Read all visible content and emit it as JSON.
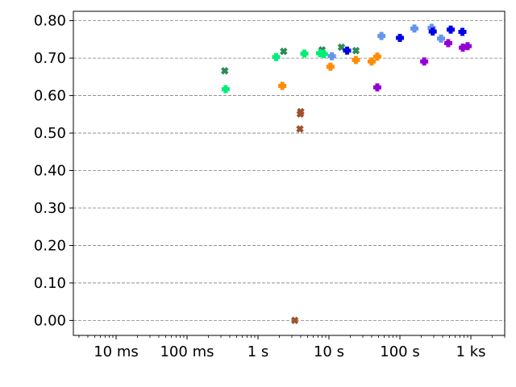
{
  "chart_data": {
    "type": "scatter",
    "title": "",
    "xlabel": "",
    "ylabel": "",
    "xscale": "log",
    "xlim_seconds": [
      0.0025,
      3000
    ],
    "ylim": [
      -0.04,
      0.825
    ],
    "grid": "horizontal dashed",
    "legend": "none",
    "x_ticks": [
      {
        "value": 0.01,
        "label": "10 ms"
      },
      {
        "value": 0.1,
        "label": "100 ms"
      },
      {
        "value": 1,
        "label": "1 s"
      },
      {
        "value": 10,
        "label": "10 s"
      },
      {
        "value": 100,
        "label": "100 s"
      },
      {
        "value": 1000,
        "label": "1 ks"
      }
    ],
    "y_ticks": [
      {
        "value": 0.0,
        "label": "0.00"
      },
      {
        "value": 0.1,
        "label": "0.10"
      },
      {
        "value": 0.2,
        "label": "0.20"
      },
      {
        "value": 0.3,
        "label": "0.30"
      },
      {
        "value": 0.4,
        "label": "0.40"
      },
      {
        "value": 0.5,
        "label": "0.50"
      },
      {
        "value": 0.6,
        "label": "0.60"
      },
      {
        "value": 0.7,
        "label": "0.70"
      },
      {
        "value": 0.8,
        "label": "0.80"
      }
    ],
    "series": [
      {
        "color": "#2e8b57",
        "marker": "x",
        "points": [
          [
            0.34,
            0.666
          ],
          [
            2.3,
            0.718
          ],
          [
            8.0,
            0.722
          ],
          [
            15.0,
            0.729
          ],
          [
            24.0,
            0.72
          ]
        ]
      },
      {
        "color": "#a0522d",
        "marker": "x",
        "points": [
          [
            3.3,
            0.0
          ],
          [
            3.9,
            0.511
          ],
          [
            3.95,
            0.551
          ],
          [
            4.0,
            0.557
          ]
        ]
      },
      {
        "color": "#00ee76",
        "marker": "p",
        "points": [
          [
            0.35,
            0.617
          ],
          [
            1.8,
            0.703
          ],
          [
            4.5,
            0.712
          ],
          [
            7.5,
            0.713
          ],
          [
            8.5,
            0.711
          ]
        ]
      },
      {
        "color": "#ff8c00",
        "marker": "p",
        "points": [
          [
            2.2,
            0.626
          ],
          [
            10.5,
            0.677
          ],
          [
            24.0,
            0.695
          ],
          [
            40.0,
            0.691
          ],
          [
            48.0,
            0.704
          ]
        ]
      },
      {
        "color": "#6495ed",
        "marker": "p",
        "points": [
          [
            11.0,
            0.705
          ],
          [
            55.0,
            0.759
          ],
          [
            160.0,
            0.779
          ],
          [
            280.0,
            0.781
          ],
          [
            380.0,
            0.752
          ]
        ]
      },
      {
        "color": "#0000e8",
        "marker": "p",
        "points": [
          [
            18.0,
            0.72
          ],
          [
            100.0,
            0.754
          ],
          [
            290.0,
            0.771
          ],
          [
            520.0,
            0.776
          ],
          [
            760.0,
            0.77
          ]
        ]
      },
      {
        "color": "#9400d3",
        "marker": "p",
        "points": [
          [
            48.0,
            0.622
          ],
          [
            220.0,
            0.691
          ],
          [
            480.0,
            0.74
          ],
          [
            770.0,
            0.728
          ],
          [
            900.0,
            0.732
          ]
        ]
      }
    ]
  }
}
